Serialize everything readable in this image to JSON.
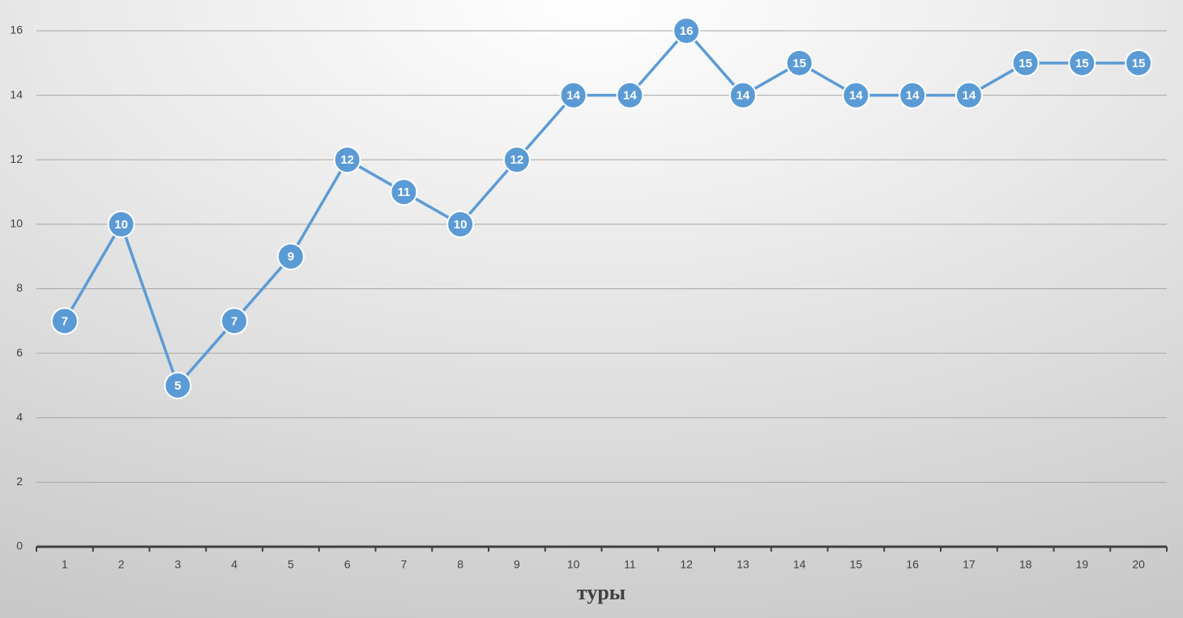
{
  "chart_data": {
    "type": "line",
    "x_label": "туры",
    "categories": [
      "1",
      "2",
      "3",
      "4",
      "5",
      "6",
      "7",
      "8",
      "9",
      "10",
      "11",
      "12",
      "13",
      "14",
      "15",
      "16",
      "17",
      "18",
      "19",
      "20"
    ],
    "values": [
      7,
      10,
      5,
      7,
      9,
      12,
      11,
      10,
      12,
      14,
      14,
      16,
      14,
      15,
      14,
      14,
      14,
      15,
      15,
      15
    ],
    "color": "#5b9bd5",
    "ylim": [
      0,
      16
    ],
    "yticks": [
      0,
      2,
      4,
      6,
      8,
      10,
      12,
      14,
      16
    ],
    "grid": true,
    "data_labels": true
  }
}
